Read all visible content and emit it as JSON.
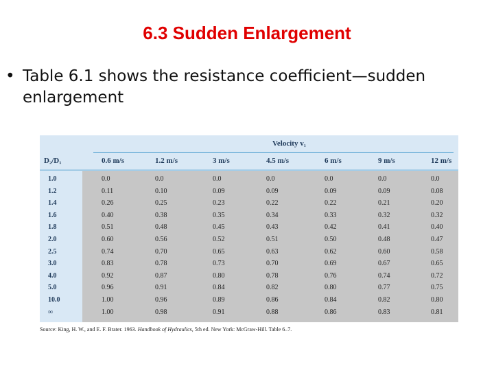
{
  "slide": {
    "title": "6.3 Sudden Enlargement",
    "bullet": "Table 6.1 shows the resistance coefficient—sudden enlargement"
  },
  "table": {
    "group_header": "Velocity v₁",
    "row_header": "D₂/D₁",
    "columns": [
      "0.6 m/s",
      "1.2 m/s",
      "3 m/s",
      "4.5 m/s",
      "6 m/s",
      "9 m/s",
      "12 m/s"
    ],
    "rows": [
      {
        "ratio": "1.0",
        "values": [
          "0.0",
          "0.0",
          "0.0",
          "0.0",
          "0.0",
          "0.0",
          "0.0"
        ]
      },
      {
        "ratio": "1.2",
        "values": [
          "0.11",
          "0.10",
          "0.09",
          "0.09",
          "0.09",
          "0.09",
          "0.08"
        ]
      },
      {
        "ratio": "1.4",
        "values": [
          "0.26",
          "0.25",
          "0.23",
          "0.22",
          "0.22",
          "0.21",
          "0.20"
        ]
      },
      {
        "ratio": "1.6",
        "values": [
          "0.40",
          "0.38",
          "0.35",
          "0.34",
          "0.33",
          "0.32",
          "0.32"
        ]
      },
      {
        "ratio": "1.8",
        "values": [
          "0.51",
          "0.48",
          "0.45",
          "0.43",
          "0.42",
          "0.41",
          "0.40"
        ]
      },
      {
        "ratio": "2.0",
        "values": [
          "0.60",
          "0.56",
          "0.52",
          "0.51",
          "0.50",
          "0.48",
          "0.47"
        ]
      },
      {
        "ratio": "2.5",
        "values": [
          "0.74",
          "0.70",
          "0.65",
          "0.63",
          "0.62",
          "0.60",
          "0.58"
        ]
      },
      {
        "ratio": "3.0",
        "values": [
          "0.83",
          "0.78",
          "0.73",
          "0.70",
          "0.69",
          "0.67",
          "0.65"
        ]
      },
      {
        "ratio": "4.0",
        "values": [
          "0.92",
          "0.87",
          "0.80",
          "0.78",
          "0.76",
          "0.74",
          "0.72"
        ]
      },
      {
        "ratio": "5.0",
        "values": [
          "0.96",
          "0.91",
          "0.84",
          "0.82",
          "0.80",
          "0.77",
          "0.75"
        ]
      },
      {
        "ratio": "10.0",
        "values": [
          "1.00",
          "0.96",
          "0.89",
          "0.86",
          "0.84",
          "0.82",
          "0.80"
        ]
      },
      {
        "ratio": "∞",
        "values": [
          "1.00",
          "0.98",
          "0.91",
          "0.88",
          "0.86",
          "0.83",
          "0.81"
        ]
      }
    ]
  },
  "source": {
    "prefix": "Source: King, H. W., and E. F. Brater. 1963. ",
    "book": "Handbook of Hydraulics",
    "suffix": ", 5th ed. New York: McGraw-Hill. Table 6–7."
  }
}
